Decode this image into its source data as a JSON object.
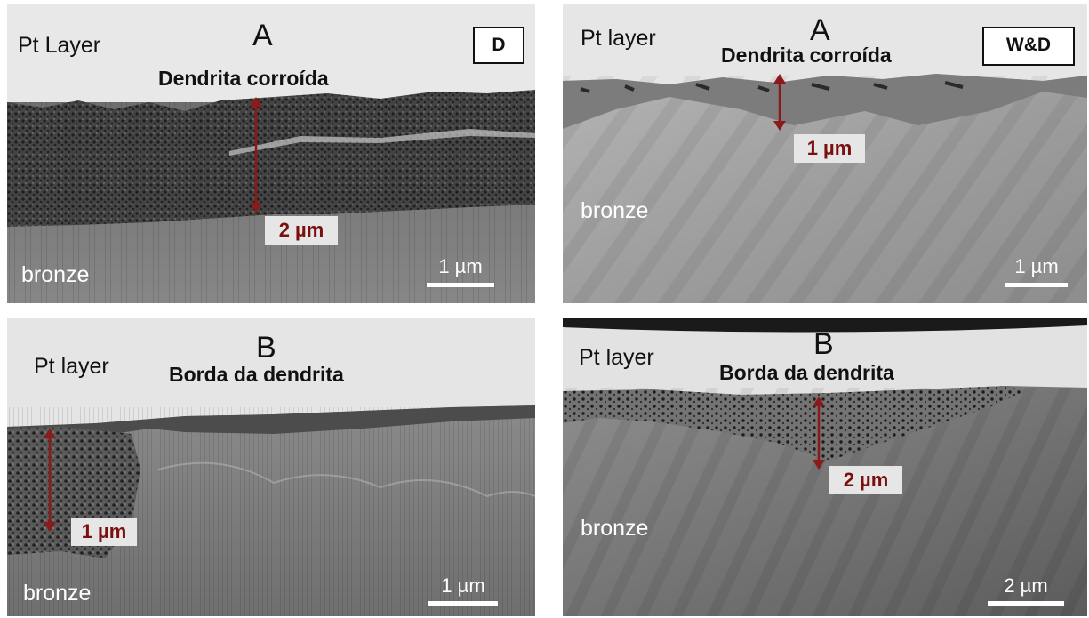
{
  "panels": [
    {
      "letter": "A",
      "top_label": "Pt Layer",
      "caption": "Dendrita corroída",
      "badge": "D",
      "measure": "2 µm",
      "bottom_label": "bronze",
      "scale": "1 µm"
    },
    {
      "letter": "A",
      "top_label": "Pt layer",
      "caption": "Dendrita corroída",
      "badge": "W&D",
      "measure": "1 µm",
      "bottom_label": "bronze",
      "scale": "1 µm"
    },
    {
      "letter": "B",
      "top_label": "Pt layer",
      "caption": "Borda da dendrita",
      "measure": "1 µm",
      "bottom_label": "bronze",
      "scale": "1 µm"
    },
    {
      "letter": "B",
      "top_label": "Pt layer",
      "caption": "Borda da dendrita",
      "measure": "2 µm",
      "bottom_label": "bronze",
      "scale": "2 µm"
    }
  ],
  "colors": {
    "pt_layer": "#e9e9e9",
    "bronze": "#7d7d7d",
    "corroded": "#3a3a3a",
    "arrow": "#8b1a1a"
  }
}
